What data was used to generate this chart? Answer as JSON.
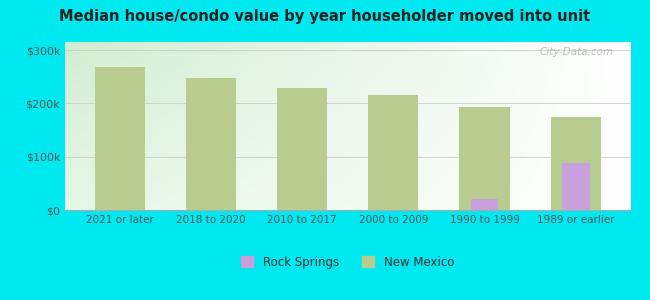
{
  "title": "Median house/condo value by year householder moved into unit",
  "categories": [
    "2021 or later",
    "2018 to 2020",
    "2010 to 2017",
    "2000 to 2009",
    "1990 to 1999",
    "1989 or earlier"
  ],
  "rock_springs_values": [
    0,
    0,
    0,
    0,
    20000,
    88000
  ],
  "new_mexico_values": [
    268000,
    248000,
    228000,
    215000,
    194000,
    175000
  ],
  "rock_springs_color": "#c9a0dc",
  "new_mexico_color": "#b8cc90",
  "background_color": "#00e8f0",
  "ylabel_ticks": [
    0,
    100000,
    200000,
    300000
  ],
  "ylabel_labels": [
    "$0",
    "$100k",
    "$200k",
    "$300k"
  ],
  "ylim": [
    0,
    315000
  ],
  "bar_width": 0.55,
  "watermark": "City-Data.com",
  "legend_labels": [
    "Rock Springs",
    "New Mexico"
  ]
}
